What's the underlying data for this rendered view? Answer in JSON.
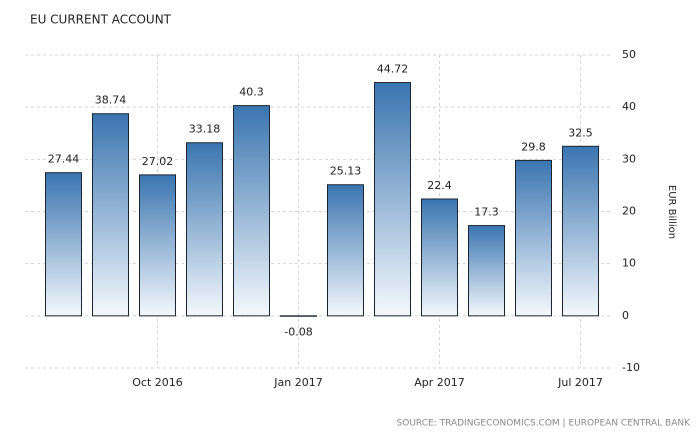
{
  "chart_data": {
    "type": "bar",
    "title": "EU CURRENT ACCOUNT",
    "categories": [
      null,
      null,
      "Oct 2016",
      null,
      null,
      "Jan 2017",
      null,
      null,
      "Apr 2017",
      null,
      null,
      "Jul 2017"
    ],
    "values": [
      27.44,
      38.74,
      27.02,
      33.18,
      40.3,
      -0.08,
      25.13,
      44.72,
      22.4,
      17.3,
      29.8,
      32.5
    ],
    "color": "#3a75b0",
    "ylabel": "EUR Billion",
    "ylim": [
      -10,
      50
    ],
    "yticks": [
      -10,
      0,
      10,
      20,
      30,
      40,
      50
    ],
    "grid": true,
    "source": "SOURCE: TRADINGECONOMICS.COM | EUROPEAN CENTRAL BANK"
  }
}
